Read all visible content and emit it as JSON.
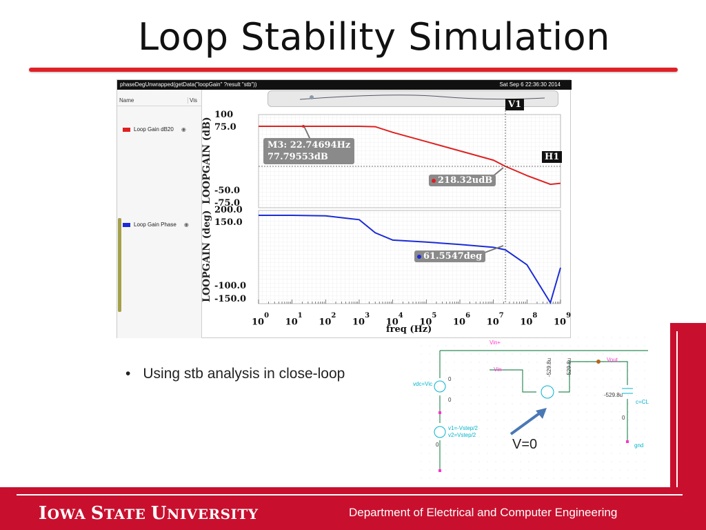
{
  "slide": {
    "title": "Loop Stability Simulation",
    "bullet": "Using stb analysis in close-loop",
    "annotation": "V=0"
  },
  "plot_window": {
    "expression": "phaseDegUnwrapped(getData(\"loopGain\" ?result \"stb\"))",
    "timestamp": "Sat Sep 6 22:36:30 2014",
    "legend_header_name": "Name",
    "legend_header_vis": "Vis",
    "legend_items": [
      {
        "label": "Loop Gain dB20",
        "color": "#e02020"
      },
      {
        "label": "Loop Gain Phase",
        "color": "#1a2bd8"
      }
    ]
  },
  "chart_data": [
    {
      "type": "line",
      "ylabel": "LOOPGAIN (dB)",
      "yticks": [
        "100",
        "75.0",
        "-50.0",
        "-75.0"
      ],
      "x_scale": "log",
      "x": [
        1,
        10,
        100,
        1000,
        3000,
        10000,
        100000,
        1000000,
        10000000,
        22700000,
        100000000,
        500000000,
        1000000000
      ],
      "series": [
        {
          "name": "Loop Gain dB20",
          "color": "#e02020",
          "values": [
            77.8,
            77.8,
            77.8,
            77.8,
            77.0,
            66,
            48,
            30,
            12,
            0,
            -18,
            -35,
            -33
          ]
        }
      ],
      "markers": [
        {
          "id": "M3",
          "label": "M3: 22.74694Hz",
          "value": "77.79553dB"
        },
        {
          "id": "H1",
          "label": "H1"
        },
        {
          "value": "218.32udB"
        }
      ]
    },
    {
      "type": "line",
      "ylabel": "LOOPGAIN (deg)",
      "yticks": [
        "200.0",
        "150.0",
        "-100.0",
        "-150.0"
      ],
      "x_scale": "log",
      "xlabel": "freq (Hz)",
      "xticks": [
        "10^0",
        "10^1",
        "10^2",
        "10^3",
        "10^4",
        "10^5",
        "10^6",
        "10^7",
        "10^8",
        "10^9"
      ],
      "x": [
        1,
        10,
        100,
        1000,
        3000,
        10000,
        100000,
        1000000,
        10000000,
        22700000,
        100000000,
        500000000,
        1000000000
      ],
      "series": [
        {
          "name": "Loop Gain Phase",
          "color": "#1a2bd8",
          "values": [
            180,
            180,
            178,
            165,
            120,
            95,
            88,
            80,
            70,
            61.5,
            10,
            -120,
            0
          ]
        }
      ],
      "markers": [
        {
          "value": "61.5547deg"
        }
      ],
      "cursor": "V1"
    }
  ],
  "schematic": {
    "nets": [
      "Vin+",
      "Vin-",
      "Vout"
    ],
    "labels": [
      "vdc=Vic",
      "v1=-Vstep/2",
      "v2=Vstep/2",
      "c=CL",
      "gnd",
      "-529.8u",
      "-529.8u",
      "-529.8u",
      "0",
      "0",
      "0",
      "0"
    ]
  },
  "footer": {
    "university_i": "I",
    "university_owa": "OWA ",
    "university_s": "S",
    "university_tate": "TATE ",
    "university_u": "U",
    "university_niversity": "NIVERSITY",
    "department": "Department of Electrical and Computer Engineering"
  }
}
